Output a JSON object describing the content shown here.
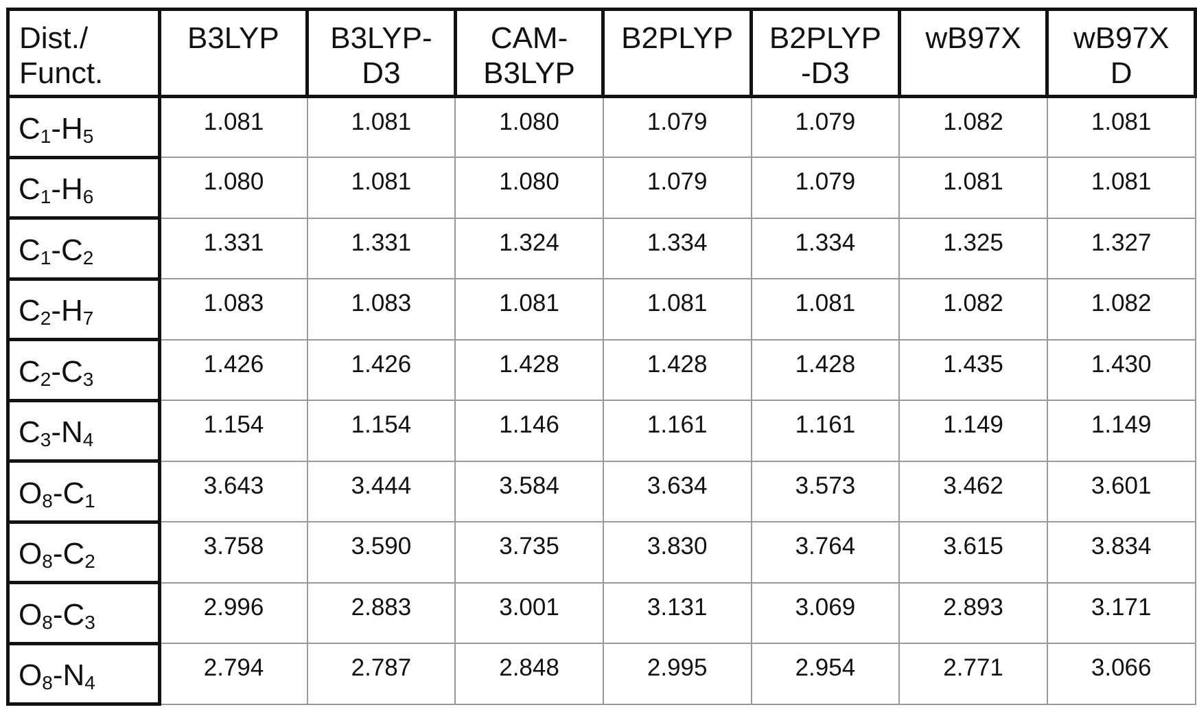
{
  "table": {
    "corner_header": [
      "Dist./",
      "Funct."
    ],
    "functionals": [
      [
        "B3LYP"
      ],
      [
        "B3LYP-",
        "D3"
      ],
      [
        "CAM-",
        "B3LYP"
      ],
      [
        "B2PLYP"
      ],
      [
        "B2PLYP",
        "-D3"
      ],
      [
        "wB97X"
      ],
      [
        "wB97X",
        "D"
      ]
    ],
    "rows": [
      {
        "label": [
          {
            "el": "C",
            "sub": "1"
          },
          {
            "el": "-H",
            "sub": "5"
          }
        ],
        "values": [
          "1.081",
          "1.081",
          "1.080",
          "1.079",
          "1.079",
          "1.082",
          "1.081"
        ]
      },
      {
        "label": [
          {
            "el": "C",
            "sub": "1"
          },
          {
            "el": "-H",
            "sub": "6"
          }
        ],
        "values": [
          "1.080",
          "1.081",
          "1.080",
          "1.079",
          "1.079",
          "1.081",
          "1.081"
        ]
      },
      {
        "label": [
          {
            "el": "C",
            "sub": "1"
          },
          {
            "el": "-C",
            "sub": "2"
          }
        ],
        "values": [
          "1.331",
          "1.331",
          "1.324",
          "1.334",
          "1.334",
          "1.325",
          "1.327"
        ]
      },
      {
        "label": [
          {
            "el": "C",
            "sub": "2"
          },
          {
            "el": "-H",
            "sub": "7"
          }
        ],
        "values": [
          "1.083",
          "1.083",
          "1.081",
          "1.081",
          "1.081",
          "1.082",
          "1.082"
        ]
      },
      {
        "label": [
          {
            "el": "C",
            "sub": "2"
          },
          {
            "el": "-C",
            "sub": "3"
          }
        ],
        "values": [
          "1.426",
          "1.426",
          "1.428",
          "1.428",
          "1.428",
          "1.435",
          "1.430"
        ]
      },
      {
        "label": [
          {
            "el": "C",
            "sub": "3"
          },
          {
            "el": "-N",
            "sub": "4"
          }
        ],
        "values": [
          "1.154",
          "1.154",
          "1.146",
          "1.161",
          "1.161",
          "1.149",
          "1.149"
        ]
      },
      {
        "label": [
          {
            "el": "O",
            "sub": "8"
          },
          {
            "el": "-C",
            "sub": "1"
          }
        ],
        "values": [
          "3.643",
          "3.444",
          "3.584",
          "3.634",
          "3.573",
          "3.462",
          "3.601"
        ]
      },
      {
        "label": [
          {
            "el": "O",
            "sub": "8"
          },
          {
            "el": "-C",
            "sub": "2"
          }
        ],
        "values": [
          "3.758",
          "3.590",
          "3.735",
          "3.830",
          "3.764",
          "3.615",
          "3.834"
        ]
      },
      {
        "label": [
          {
            "el": "O",
            "sub": "8"
          },
          {
            "el": "-C",
            "sub": "3"
          }
        ],
        "values": [
          "2.996",
          "2.883",
          "3.001",
          "3.131",
          "3.069",
          "2.893",
          "3.171"
        ]
      },
      {
        "label": [
          {
            "el": "O",
            "sub": "8"
          },
          {
            "el": "-N",
            "sub": "4"
          }
        ],
        "values": [
          "2.794",
          "2.787",
          "2.848",
          "2.995",
          "2.954",
          "2.771",
          "3.066"
        ]
      }
    ]
  }
}
